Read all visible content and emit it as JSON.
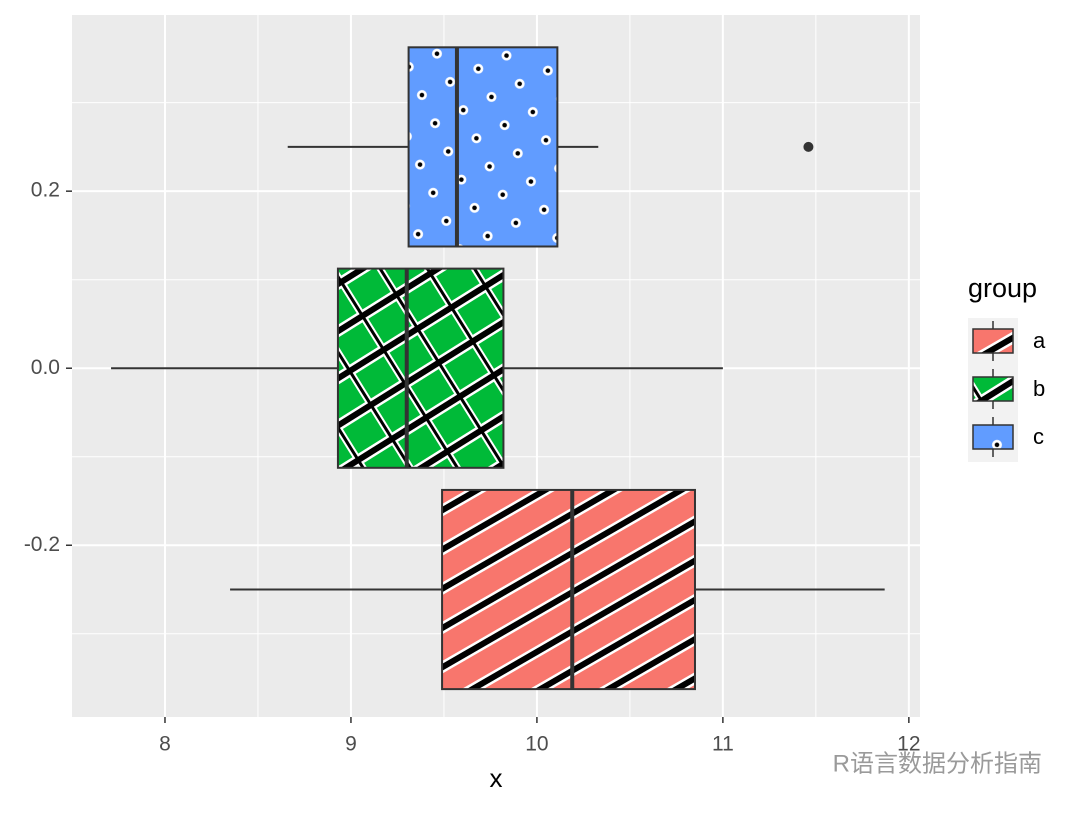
{
  "chart_data": {
    "type": "boxplot",
    "orientation": "horizontal",
    "x_label": "x",
    "legend_title": "group",
    "watermark": "R语言数据分析指南",
    "xlim": [
      7.5,
      12.06
    ],
    "ylim": [
      -0.394,
      0.399
    ],
    "xticks": [
      8,
      9,
      10,
      11,
      12
    ],
    "yticks": [
      -0.2,
      {
        "value": 0,
        "label": "0.0"
      },
      0.2
    ],
    "grid": true,
    "box_width": 0.225,
    "series": [
      {
        "name": "a",
        "color": "#F8766D",
        "pattern": "stripe",
        "position": -0.25,
        "min": 8.35,
        "q1": 9.49,
        "median": 10.19,
        "q3": 10.85,
        "max": 11.87
      },
      {
        "name": "b",
        "color": "#00BA38",
        "pattern": "crosshatch",
        "position": 0,
        "min": 7.71,
        "q1": 8.93,
        "median": 9.3,
        "q3": 9.82,
        "max": 11.0
      },
      {
        "name": "c",
        "color": "#619CFF",
        "pattern": "circle",
        "position": 0.25,
        "min": 8.66,
        "q1": 9.31,
        "median": 9.57,
        "q3": 10.11,
        "max": 10.33,
        "outliers": [
          11.46
        ]
      }
    ]
  }
}
